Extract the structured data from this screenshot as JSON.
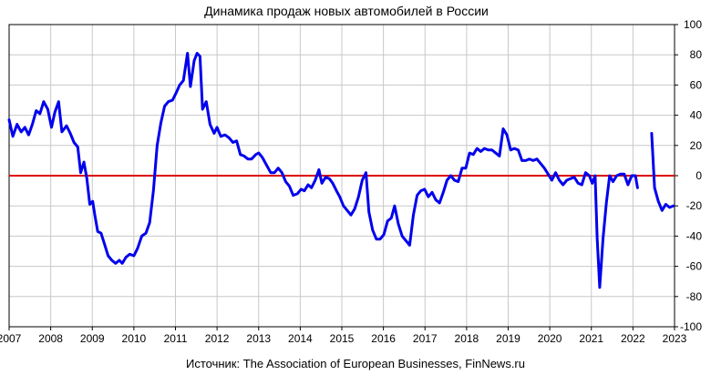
{
  "chart_data": {
    "type": "line",
    "title": "Динамика продаж новых автомобилей в России",
    "source": "Источник: The Association of European Businesses, FinNews.ru",
    "xlabel": "",
    "ylabel": "",
    "xlim": [
      2007,
      2023
    ],
    "ylim": [
      -100,
      100
    ],
    "x_ticks": [
      "2007",
      "2008",
      "2009",
      "2010",
      "2011",
      "2012",
      "2013",
      "2014",
      "2015",
      "2016",
      "2017",
      "2018",
      "2019",
      "2020",
      "2021",
      "2022",
      "2023"
    ],
    "y_ticks": [
      "100",
      "80",
      "60",
      "40",
      "20",
      "0",
      "-20",
      "-40",
      "-60",
      "-80",
      "-100"
    ],
    "grid": true,
    "legend": "none",
    "colors": {
      "series": "#0000ee",
      "zero_line": "#dd0000",
      "grid": "#c8c8c8"
    },
    "series": [
      {
        "values": [
          [
            2007.0,
            37
          ],
          [
            2007.09,
            26
          ],
          [
            2007.19,
            34
          ],
          [
            2007.29,
            29
          ],
          [
            2007.38,
            32
          ],
          [
            2007.47,
            27
          ],
          [
            2007.56,
            34
          ],
          [
            2007.65,
            43
          ],
          [
            2007.74,
            41
          ],
          [
            2007.83,
            49
          ],
          [
            2007.93,
            44
          ],
          [
            2008.02,
            32
          ],
          [
            2008.1,
            42
          ],
          [
            2008.19,
            49
          ],
          [
            2008.27,
            29
          ],
          [
            2008.38,
            33
          ],
          [
            2008.47,
            28
          ],
          [
            2008.56,
            22
          ],
          [
            2008.65,
            19
          ],
          [
            2008.72,
            2
          ],
          [
            2008.8,
            9
          ],
          [
            2008.87,
            -2
          ],
          [
            2008.94,
            -19
          ],
          [
            2009.01,
            -17
          ],
          [
            2009.06,
            -26
          ],
          [
            2009.13,
            -37
          ],
          [
            2009.21,
            -38
          ],
          [
            2009.29,
            -45
          ],
          [
            2009.38,
            -53
          ],
          [
            2009.47,
            -56
          ],
          [
            2009.56,
            -58
          ],
          [
            2009.65,
            -56
          ],
          [
            2009.72,
            -58
          ],
          [
            2009.81,
            -54
          ],
          [
            2009.9,
            -52
          ],
          [
            2010.0,
            -53
          ],
          [
            2010.09,
            -48
          ],
          [
            2010.19,
            -40
          ],
          [
            2010.29,
            -38
          ],
          [
            2010.38,
            -31
          ],
          [
            2010.47,
            -10
          ],
          [
            2010.56,
            20
          ],
          [
            2010.65,
            35
          ],
          [
            2010.74,
            46
          ],
          [
            2010.83,
            49
          ],
          [
            2010.93,
            50
          ],
          [
            2011.02,
            55
          ],
          [
            2011.1,
            60
          ],
          [
            2011.19,
            63
          ],
          [
            2011.29,
            81
          ],
          [
            2011.36,
            59
          ],
          [
            2011.45,
            76
          ],
          [
            2011.52,
            81
          ],
          [
            2011.59,
            79
          ],
          [
            2011.65,
            44
          ],
          [
            2011.74,
            49
          ],
          [
            2011.83,
            34
          ],
          [
            2011.93,
            28
          ],
          [
            2012.0,
            32
          ],
          [
            2012.09,
            26
          ],
          [
            2012.19,
            27
          ],
          [
            2012.29,
            25
          ],
          [
            2012.38,
            22
          ],
          [
            2012.47,
            23
          ],
          [
            2012.56,
            14
          ],
          [
            2012.65,
            13
          ],
          [
            2012.74,
            11
          ],
          [
            2012.83,
            11
          ],
          [
            2012.93,
            14
          ],
          [
            2013.0,
            15
          ],
          [
            2013.09,
            12
          ],
          [
            2013.19,
            7
          ],
          [
            2013.29,
            2
          ],
          [
            2013.38,
            2
          ],
          [
            2013.47,
            5
          ],
          [
            2013.56,
            2
          ],
          [
            2013.65,
            -4
          ],
          [
            2013.74,
            -7
          ],
          [
            2013.83,
            -13
          ],
          [
            2013.93,
            -12
          ],
          [
            2014.02,
            -9
          ],
          [
            2014.1,
            -10
          ],
          [
            2014.19,
            -6
          ],
          [
            2014.27,
            -8
          ],
          [
            2014.36,
            -3
          ],
          [
            2014.45,
            4
          ],
          [
            2014.52,
            -5
          ],
          [
            2014.61,
            -1
          ],
          [
            2014.7,
            -2
          ],
          [
            2014.78,
            -5
          ],
          [
            2014.87,
            -10
          ],
          [
            2014.95,
            -14
          ],
          [
            2015.04,
            -20
          ],
          [
            2015.13,
            -23
          ],
          [
            2015.22,
            -26
          ],
          [
            2015.31,
            -22
          ],
          [
            2015.4,
            -14
          ],
          [
            2015.49,
            -3
          ],
          [
            2015.58,
            2
          ],
          [
            2015.65,
            -24
          ],
          [
            2015.74,
            -36
          ],
          [
            2015.83,
            -42
          ],
          [
            2015.92,
            -42
          ],
          [
            2016.01,
            -39
          ],
          [
            2016.1,
            -30
          ],
          [
            2016.19,
            -28
          ],
          [
            2016.27,
            -20
          ],
          [
            2016.36,
            -32
          ],
          [
            2016.45,
            -40
          ],
          [
            2016.54,
            -43
          ],
          [
            2016.63,
            -46
          ],
          [
            2016.72,
            -26
          ],
          [
            2016.81,
            -13
          ],
          [
            2016.9,
            -10
          ],
          [
            2016.99,
            -9
          ],
          [
            2017.08,
            -14
          ],
          [
            2017.17,
            -11
          ],
          [
            2017.26,
            -16
          ],
          [
            2017.35,
            -18
          ],
          [
            2017.44,
            -11
          ],
          [
            2017.53,
            -3
          ],
          [
            2017.62,
            0
          ],
          [
            2017.71,
            -3
          ],
          [
            2017.8,
            -4
          ],
          [
            2017.89,
            5
          ],
          [
            2017.98,
            5
          ],
          [
            2018.07,
            15
          ],
          [
            2018.16,
            14
          ],
          [
            2018.25,
            18
          ],
          [
            2018.34,
            16
          ],
          [
            2018.43,
            18
          ],
          [
            2018.52,
            17
          ],
          [
            2018.61,
            17
          ],
          [
            2018.7,
            15
          ],
          [
            2018.79,
            13
          ],
          [
            2018.88,
            31
          ],
          [
            2018.97,
            27
          ],
          [
            2019.06,
            17
          ],
          [
            2019.15,
            18
          ],
          [
            2019.24,
            17
          ],
          [
            2019.33,
            10
          ],
          [
            2019.42,
            10
          ],
          [
            2019.51,
            11
          ],
          [
            2019.6,
            10
          ],
          [
            2019.69,
            11
          ],
          [
            2019.78,
            8
          ],
          [
            2019.87,
            5
          ],
          [
            2019.96,
            1
          ],
          [
            2020.05,
            -3
          ],
          [
            2020.14,
            2
          ],
          [
            2020.23,
            -3
          ],
          [
            2020.32,
            -6
          ],
          [
            2020.41,
            -3
          ],
          [
            2020.5,
            -2
          ],
          [
            2020.59,
            -1
          ],
          [
            2020.68,
            -5
          ],
          [
            2020.77,
            -6
          ],
          [
            2020.86,
            2
          ],
          [
            2020.95,
            0
          ],
          [
            2021.02,
            -5
          ],
          [
            2021.09,
            0
          ],
          [
            2021.14,
            -41
          ],
          [
            2021.2,
            -74
          ],
          [
            2021.28,
            -42
          ],
          [
            2021.36,
            -18
          ],
          [
            2021.44,
            0
          ],
          [
            2021.52,
            -4
          ],
          [
            2021.61,
            0
          ],
          [
            2021.7,
            1
          ],
          [
            2021.79,
            1
          ],
          [
            2021.88,
            -6
          ],
          [
            2021.97,
            0
          ],
          [
            2022.06,
            0
          ],
          [
            2022.11,
            -8
          ],
          [
            null,
            null
          ],
          [
            2022.45,
            28
          ],
          [
            2022.52,
            -8
          ],
          [
            2022.61,
            -17
          ],
          [
            2022.7,
            -23
          ],
          [
            2022.79,
            -19
          ],
          [
            2022.88,
            -21
          ],
          [
            2022.97,
            -20
          ]
        ]
      }
    ],
    "reference_line": 0
  }
}
